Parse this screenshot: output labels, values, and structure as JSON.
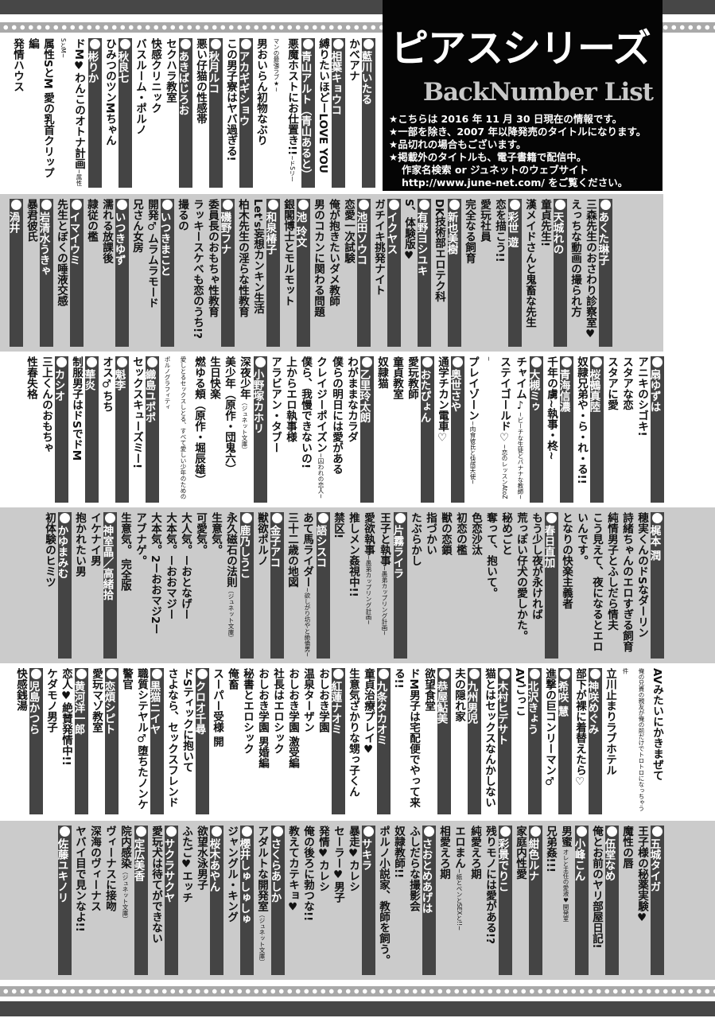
{
  "header": {
    "title": "ピアスシリーズ",
    "subtitle": "BackNumber List",
    "notes": [
      "★こちらは 2016 年 11 月 30 日現在の情報です。",
      "★一部を除き、2007 年以降発売のタイトルになります。",
      "★品切れの場合もございます。",
      "★掲載外のタイトルも、電子書籍で配信中。",
      "作家名検索 or ジュネットのウェブサイト",
      "http://www.june-net.com/ をご覧ください。"
    ]
  },
  "colors": {
    "header_bg": "#444444",
    "band_gray": "#cbcbcb",
    "title_box": "#050505"
  },
  "bands": [
    {
      "groups": [
        {
          "author": "藍川いたる",
          "titles": [
            {
              "text": "かべアナ"
            }
          ]
        },
        {
          "author": "相葉キョウコ",
          "titles": [
            {
              "text": "縛りたいほどーLOVE YOU"
            }
          ]
        },
        {
          "author": "青山アルト（青山あると）",
          "titles": [
            {
              "text": "悪魔ホストにお仕置き!!",
              "sub": "~ドSリーマンの最強ラブ★~"
            },
            {
              "text": "男おいらん初物なぶり"
            }
          ]
        },
        {
          "author": "アカギギショウ",
          "titles": [
            {
              "text": "この男子寮はヤバ過ぎる!"
            }
          ]
        },
        {
          "author": "秋月ルコ",
          "titles": [
            {
              "text": "悪い仔猫の性感帯"
            }
          ]
        },
        {
          "author": "あきばじろお",
          "titles": [
            {
              "text": "セクハラ教室"
            },
            {
              "text": "快感クリニック"
            },
            {
              "text": "バスルーム・ポルノ"
            }
          ]
        },
        {
          "author": "秋良七",
          "titles": [
            {
              "text": "ひみつのツンMちゃん"
            }
          ]
        },
        {
          "author": "彬りか",
          "titles": [
            {
              "text": "ドM♥わんこのオトナ計画",
              "sub": "~属性SとM~"
            },
            {
              "text": "属性SとM 愛の乳首クリップ編"
            },
            {
              "text": "発情ハウス"
            }
          ]
        }
      ]
    },
    {
      "groups": [
        {
          "author": "あくた琳子",
          "titles": [
            {
              "text": "三森先生のおさわり診察室♥"
            },
            {
              "text": "えっちな動画の撮られ方"
            }
          ]
        },
        {
          "author": "天城れの",
          "titles": [
            {
              "text": "童貞先生!"
            },
            {
              "text": "漢メイドさんと鬼畜な先生"
            }
          ]
        },
        {
          "author": "彩世 遊",
          "titles": [
            {
              "text": "恋を描こう!!"
            },
            {
              "text": "愛玩社員"
            },
            {
              "text": "完全なる飼育"
            }
          ]
        },
        {
          "author": "新也美樹",
          "titles": [
            {
              "text": "DK技術部エロテク科"
            }
          ]
        },
        {
          "author": "有野ヨシユキ",
          "titles": [
            {
              "text": "S、体験版♥"
            }
          ]
        },
        {
          "author": "イクヤス",
          "titles": [
            {
              "text": "ガチイキ挑発ナイト"
            }
          ]
        },
        {
          "author": "池田ソウコ",
          "titles": [
            {
              "text": "恋愛一次試験"
            },
            {
              "text": "俺が抱きたいダメ教師"
            },
            {
              "text": "男のコカンに関わる問題"
            }
          ]
        },
        {
          "author": "池 玲文",
          "titles": [
            {
              "text": "銀閣博士とモルモット"
            }
          ]
        },
        {
          "author": "和泉椿子",
          "titles": [
            {
              "text": "Let's妄想カンキン生活"
            },
            {
              "text": "柏木先生の淫らな性教育"
            }
          ]
        },
        {
          "author": "磯野フナ",
          "titles": [
            {
              "text": "委員長のおもちゃ性教育"
            },
            {
              "text": "ラッキースケベも恋のうち!?"
            },
            {
              "text": "撮るの"
            }
          ]
        },
        {
          "author": "いつきまこと",
          "titles": [
            {
              "text": "開発♂ムラムラモード"
            },
            {
              "text": "兄さん女房"
            }
          ]
        },
        {
          "author": "いつきゆず",
          "titles": [
            {
              "text": "濡れる放課後"
            },
            {
              "text": "隷従の檻"
            }
          ]
        },
        {
          "author": "イマイウミ",
          "titles": [
            {
              "text": "先生とぼくの唾液交感"
            }
          ]
        },
        {
          "author": "岩清水うきゃ",
          "titles": [
            {
              "text": "暴君彼氏"
            }
          ]
        },
        {
          "author": "渦井",
          "titles": []
        }
      ]
    },
    {
      "groups": [
        {
          "author": "扇ゆずは",
          "titles": [
            {
              "text": "アニキのシゴキ!"
            },
            {
              "text": "スタアな恋"
            },
            {
              "text": "スタアに愛"
            }
          ]
        },
        {
          "author": "桜鵺真陸",
          "titles": [
            {
              "text": "奴隷兄弟や・ら・れ・る!!"
            }
          ]
        },
        {
          "author": "青海信濃",
          "titles": [
            {
              "text": "千年の虜~執事・柊~"
            }
          ]
        },
        {
          "author": "大槻ミゥ",
          "titles": [
            {
              "text": "チャイム♪",
              "sub": "~ビーチな生徒とバナナな教師~"
            },
            {
              "text": "ステイゴールド♡",
              "sub": "~恋のレッスンAtoZ~"
            },
            {
              "text": "プレイゾーン",
              "sub": "~肉食彼氏と快感天使~"
            }
          ]
        },
        {
          "author": "奥世さや",
          "titles": [
            {
              "text": "通学チカン電車♡"
            }
          ]
        },
        {
          "author": "おたぴょん",
          "titles": [
            {
              "text": "愛玩教師"
            },
            {
              "text": "童貞教室"
            },
            {
              "text": "奴隷猫"
            }
          ]
        },
        {
          "author": "乙里玲太朗",
          "titles": [
            {
              "text": "わがままなカラダ"
            },
            {
              "text": "僕らの明日には愛がある"
            },
            {
              "text": "クレイジーポイズン",
              "sub": "~囚われの恋人~"
            },
            {
              "text": "僕ら、我慢できないの!"
            },
            {
              "text": "上からエロ執事様"
            },
            {
              "text": "アラビアン・タブー"
            }
          ]
        },
        {
          "author": "小野塚カホリ",
          "titles": [
            {
              "text": "深夜少年",
              "sub": "（ジュネット文庫）"
            },
            {
              "text": "美少年（原作・団鬼六）"
            },
            {
              "text": "生日快楽"
            },
            {
              "text": "燃ゆる頬（原作・堀辰雄）"
            },
            {
              "text": "",
              "sub": "愛しとるセックスしとる、すべて愛しい少年のためのポルノグラフィティ"
            }
          ]
        },
        {
          "author": "織島ユポポ",
          "titles": [
            {
              "text": "セックスキューズミー!"
            }
          ]
        },
        {
          "author": "魁李",
          "titles": [
            {
              "text": "オス♂ちち"
            }
          ]
        },
        {
          "author": "華炎",
          "titles": [
            {
              "text": "制服男子はドSでドM"
            }
          ]
        },
        {
          "author": "カシオ",
          "titles": [
            {
              "text": "三上くんのおもちゃ"
            },
            {
              "text": "性春失格"
            }
          ]
        }
      ]
    },
    {
      "groups": [
        {
          "author": "梶本 潤",
          "titles": [
            {
              "text": "穂実くんのドSなダーリン"
            },
            {
              "text": "詩緒ちゃんのエロすぎる飼育"
            },
            {
              "text": "純情男子とふしだら情夫"
            },
            {
              "text": "こう見えて、夜になるとエロいんです。"
            },
            {
              "text": "となりの快楽主義者"
            }
          ]
        },
        {
          "author": "春日直加",
          "titles": [
            {
              "text": "もう少し夜が永ければ"
            },
            {
              "text": "荒っぽい仔犬の愛しかた。"
            },
            {
              "text": "秘めごと"
            },
            {
              "text": "奪って、抱いて。"
            },
            {
              "text": "色恋沙汰"
            },
            {
              "text": "初恋の檻"
            },
            {
              "text": "獣の恋鎖"
            },
            {
              "text": "指づかい"
            },
            {
              "text": "たぶらかし"
            }
          ]
        },
        {
          "author": "片霧ライラ",
          "titles": [
            {
              "text": "王子と執事",
              "sub": "~愚弟カップリング計画~"
            },
            {
              "text": "愛欲執事",
              "sub": "~愚弟カップリング計画~"
            },
            {
              "text": "推しメン姦視中!!"
            },
            {
              "text": "禁区!"
            }
          ]
        },
        {
          "author": "語シスコ",
          "titles": [
            {
              "text": "あて馬ライダー",
              "sub": "~欲しがり坊やと絶倫男~"
            },
            {
              "text": "三十二歳の地図"
            }
          ]
        },
        {
          "author": "金子アコ",
          "titles": [
            {
              "text": "獣欲ポルノ"
            }
          ]
        },
        {
          "author": "鹿乃しうこ",
          "titles": [
            {
              "text": "永久磁石の法則",
              "sub": "（ジュネット文庫）"
            },
            {
              "text": "生意気。"
            },
            {
              "text": "可愛気。"
            },
            {
              "text": "大人気。ーおとなげー"
            },
            {
              "text": "大本気。ーおおマジー"
            },
            {
              "text": "大本気。2ーおおマジ2ー"
            },
            {
              "text": "アブナゲ。"
            },
            {
              "text": "生意気。 完全版"
            }
          ]
        },
        {
          "author": "神室晶／高緒拾",
          "titles": [
            {
              "text": "イケナイ男"
            },
            {
              "text": "抱かれたい男"
            }
          ]
        },
        {
          "author": "かゆまみむ",
          "titles": [
            {
              "text": "初体験のヒミツ"
            }
          ]
        }
      ]
    },
    {
      "groups": [
        {
          "author": null,
          "titles": [
            {
              "text": "AVみたいにかきまぜて"
            },
            {
              "text": "",
              "sub": "俺の兄貴の親友が俺の前だけでトロトロになっちゃう件"
            },
            {
              "text": "立川止まりラブホテル"
            }
          ]
        },
        {
          "author": "神咲めぐみ",
          "titles": [
            {
              "text": "部下が裸に着替えたら♡"
            }
          ]
        },
        {
          "author": "希咲 慧",
          "titles": [
            {
              "text": "進撃の巨コンリーマン♂"
            }
          ]
        },
        {
          "author": "北沢きょう",
          "titles": [
            {
              "text": "AVごっこ"
            }
          ]
        },
        {
          "author": "木村ヒデサト",
          "titles": [
            {
              "text": "猫とはセックスなんかしない"
            }
          ]
        },
        {
          "author": "九州男児",
          "titles": [
            {
              "text": "夫の隠れ家"
            }
          ]
        },
        {
          "author": "恭屋鮎美",
          "titles": [
            {
              "text": "欲望食堂"
            },
            {
              "text": "ドM男子は宅配便でやって来る!!"
            }
          ]
        },
        {
          "author": "九条タカオミ",
          "titles": [
            {
              "text": "童貞治療プレイ♥"
            },
            {
              "text": "生意気ざかりな甥っ子くん"
            }
          ]
        },
        {
          "author": "紅蓮ナオミ",
          "titles": [
            {
              "text": "おしおき学園"
            },
            {
              "text": "温泉ターザン"
            },
            {
              "text": "おしおき学園 激受編"
            },
            {
              "text": "社長はエロシック"
            },
            {
              "text": "おしおき学園 男婚編"
            },
            {
              "text": "秘書とエロシック"
            },
            {
              "text": "俺畜"
            },
            {
              "text": "スーパー受様 開"
            }
          ]
        },
        {
          "author": "クロオ千尋",
          "titles": [
            {
              "text": "ドSティックに抱いて"
            },
            {
              "text": "さよなら、セックスフレンド"
            }
          ]
        },
        {
          "author": "黒猫ニイヤ",
          "titles": [
            {
              "text": "職質シテヤル♂堕ちたノンケ警官"
            }
          ]
        },
        {
          "author": "恋煩シピト",
          "titles": [
            {
              "text": "愛玩マゾ教室"
            }
          ]
        },
        {
          "author": "黄河洋一郎",
          "titles": [
            {
              "text": "恋人♥絶賛発情中!!"
            },
            {
              "text": "ケダモノ男子"
            }
          ]
        },
        {
          "author": "児島かつら",
          "titles": [
            {
              "text": "快感銭湯"
            }
          ]
        }
      ]
    },
    {
      "groups": [
        {
          "author": "五城タイガ",
          "titles": [
            {
              "text": "王子様の秘薬実験♥"
            },
            {
              "text": "魔性の唇"
            }
          ]
        },
        {
          "author": "伍堂なめ",
          "titles": [
            {
              "text": "俺とお前のヤリ部屋日記!"
            }
          ]
        },
        {
          "author": "小峰こん",
          "titles": [
            {
              "text": "男蜜",
              "sub": " オレと主任の愛液♥開発室"
            },
            {
              "text": "兄弟姦!!!"
            }
          ]
        },
        {
          "author": "紺色ルナ",
          "titles": [
            {
              "text": "家庭内性愛"
            }
          ]
        },
        {
          "author": "彩景でりこ",
          "titles": [
            {
              "text": "残りモノには愛がある!?"
            },
            {
              "text": "純愛えろ期"
            },
            {
              "text": "エロまん",
              "sub": "~紙とペンとSEXと!!~"
            },
            {
              "text": "相愛えろ期"
            }
          ]
        },
        {
          "author": "さおとめあげは",
          "titles": [
            {
              "text": "ふしだらな撮影会"
            },
            {
              "text": "奴隷教師!!"
            },
            {
              "text": "ポルノ小説家、教師を飼う。"
            }
          ]
        },
        {
          "author": "サキラ",
          "titles": [
            {
              "text": "暴走♥カレシ"
            },
            {
              "text": "セーラー♥男子"
            },
            {
              "text": "発情♥カレシ"
            },
            {
              "text": "俺の後ろに勃つな!!"
            },
            {
              "text": "教えてカテキョ♥"
            }
          ]
        },
        {
          "author": "さくらあしか",
          "titles": [
            {
              "text": "アダルトな開発室",
              "sub": "（ジュネット文庫）"
            }
          ]
        },
        {
          "author": "櫻井しゅしゅしゅ",
          "titles": [
            {
              "text": "ジャングル・キング"
            }
          ]
        },
        {
          "author": "桜木あやん",
          "titles": [
            {
              "text": "欲望水泳男子"
            },
            {
              "text": "ふたご♥エッチ"
            }
          ]
        },
        {
          "author": "サクラサクヤ",
          "titles": [
            {
              "text": "愛玩犬は待てができない"
            }
          ]
        },
        {
          "author": "定広美香",
          "titles": [
            {
              "text": "院内感染",
              "sub": "（ジュネット文庫）"
            },
            {
              "text": "ヴィーナスに接吻"
            },
            {
              "text": "深海のヴィーナス"
            },
            {
              "text": "ヤバイ目で見ンなよ!!"
            }
          ]
        },
        {
          "author": "佐藤ユキノリ",
          "titles": []
        }
      ]
    }
  ]
}
